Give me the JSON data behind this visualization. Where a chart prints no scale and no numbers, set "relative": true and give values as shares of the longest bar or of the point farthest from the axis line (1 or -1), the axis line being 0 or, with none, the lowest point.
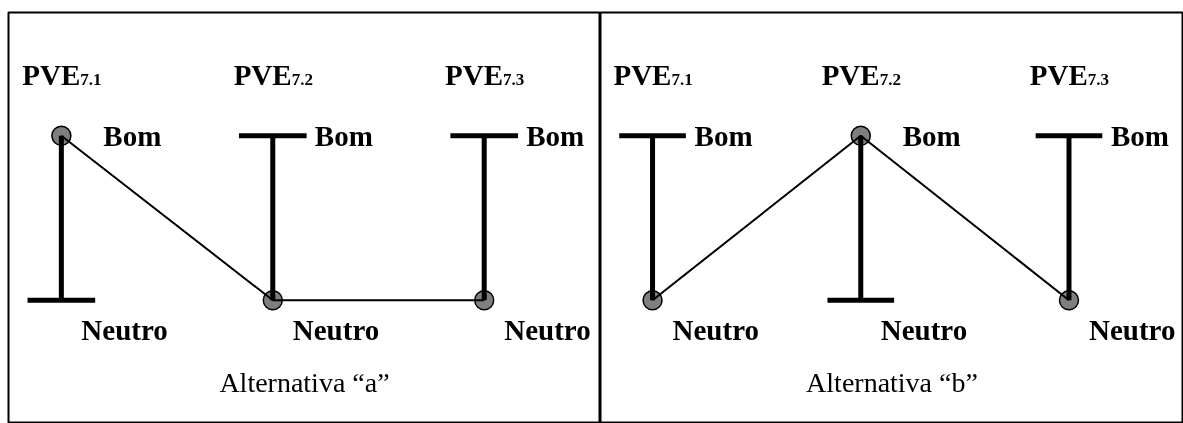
{
  "chart_data": [
    {
      "type": "line",
      "title": "Alternativa “a”",
      "categories": [
        "PVE$_{7.1}$",
        "PVE$_{7.2}$",
        "PVE$_{7.3}$"
      ],
      "series": [
        {
          "color": "#000000",
          "values": [
            1,
            0,
            0
          ]
        }
      ],
      "relative": true,
      "marker": "circle",
      "line_style": "solid",
      "grid": "x",
      "annotations": [
        "Bom",
        "Neutro",
        "Bom",
        "Neutro",
        "Bom",
        "Neutro"
      ]
    },
    {
      "type": "line",
      "title": "Alternativa “b”",
      "categories": [
        "PVE$_{7.1}$",
        "PVE$_{7.2}$",
        "PVE$_{7.3}$"
      ],
      "series": [
        {
          "color": "#000000",
          "values": [
            0,
            1,
            0
          ]
        }
      ],
      "relative": true,
      "marker": "circle",
      "line_style": "solid",
      "grid": "x",
      "annotations": [
        "Bom",
        "Neutro",
        "Bom",
        "Neutro",
        "Bom",
        "Neutro"
      ]
    }
  ]
}
